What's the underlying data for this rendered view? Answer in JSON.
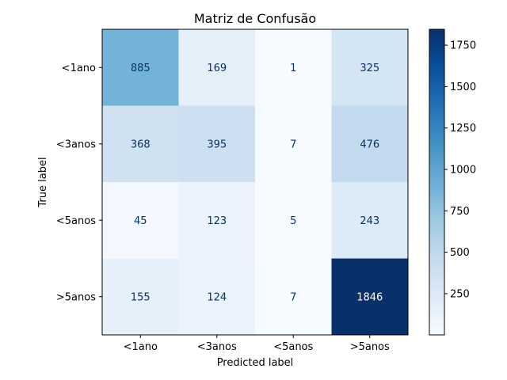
{
  "chart_data": {
    "type": "heatmap",
    "title": "Matriz de Confusão",
    "xlabel": "Predicted label",
    "ylabel": "True label",
    "x_categories": [
      "<1ano",
      "<3anos",
      "<5anos",
      ">5anos"
    ],
    "y_categories": [
      "<1ano",
      "<3anos",
      "<5anos",
      ">5anos"
    ],
    "values": [
      [
        885,
        169,
        1,
        325
      ],
      [
        368,
        395,
        7,
        476
      ],
      [
        45,
        123,
        5,
        243
      ],
      [
        155,
        124,
        7,
        1846
      ]
    ],
    "colormap": "Blues",
    "color_range": [
      1,
      1846
    ],
    "colorbar_ticks": [
      250,
      500,
      750,
      1000,
      1250,
      1500,
      1750
    ],
    "grid": false
  }
}
